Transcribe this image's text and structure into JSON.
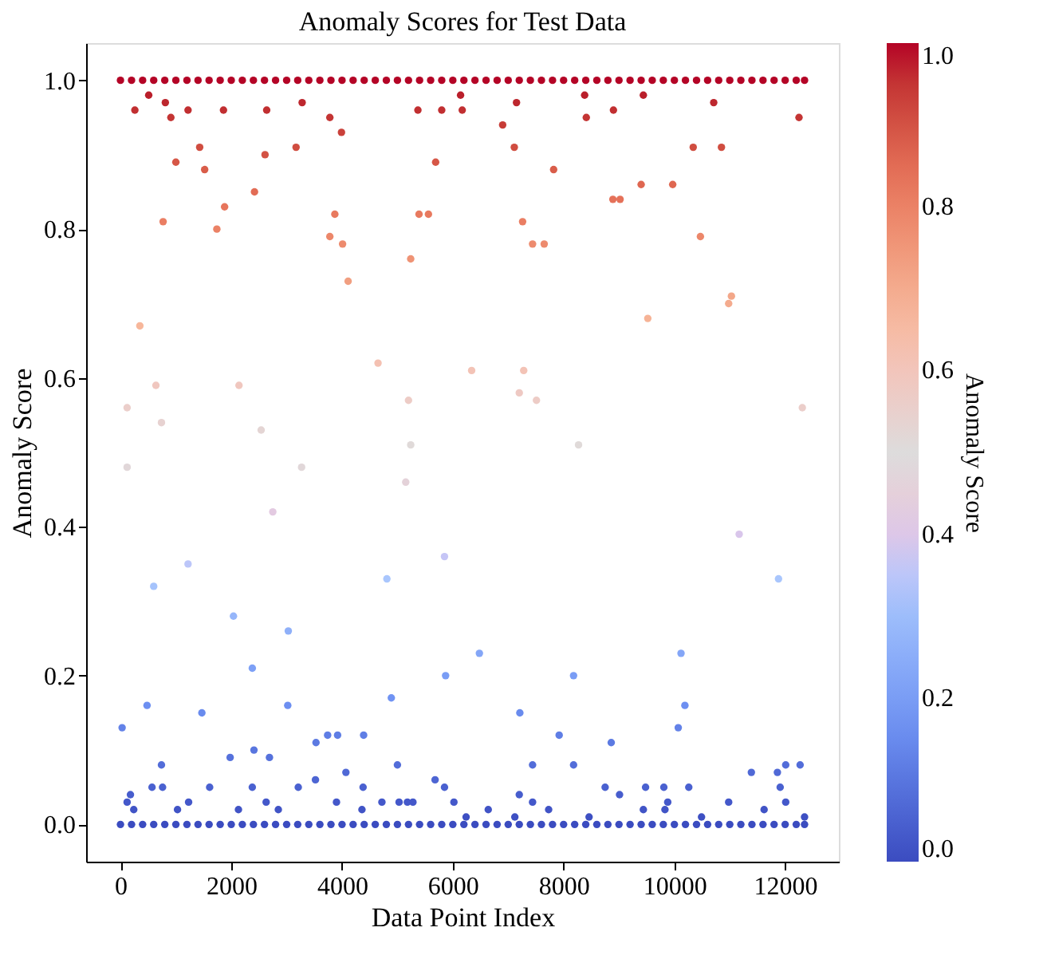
{
  "chart_data": {
    "type": "scatter",
    "title": "Anomaly Scores for Test Data",
    "xlabel": "Data Point Index",
    "ylabel": "Anomaly Score",
    "clabel": "Anomaly Score",
    "xlim": [
      -620,
      12970
    ],
    "ylim": [
      -0.05,
      1.05
    ],
    "xticks": [
      0,
      2000,
      4000,
      6000,
      8000,
      10000,
      12000
    ],
    "yticks": [
      {
        "value": 0,
        "label": "0.0"
      },
      {
        "value": 0.2,
        "label": "0.2"
      },
      {
        "value": 0.4,
        "label": "0.4"
      },
      {
        "value": 0.6,
        "label": "0.6"
      },
      {
        "value": 0.8,
        "label": "0.8"
      },
      {
        "value": 1,
        "label": "1.0"
      }
    ],
    "clim": [
      0,
      1
    ],
    "cticks": [
      {
        "value": 0,
        "label": "0.0"
      },
      {
        "value": 0.2,
        "label": "0.2"
      },
      {
        "value": 0.4,
        "label": "0.4"
      },
      {
        "value": 0.6,
        "label": "0.6"
      },
      {
        "value": 0.8,
        "label": "0.8"
      },
      {
        "value": 1,
        "label": "1.0"
      }
    ],
    "marker": "circle",
    "grid": false,
    "x": [
      0,
      200,
      400,
      600,
      800,
      1000,
      1200,
      1400,
      1600,
      1800,
      2000,
      2200,
      2400,
      2600,
      2800,
      3000,
      3200,
      3400,
      3600,
      3800,
      4000,
      4200,
      4400,
      4600,
      4800,
      5000,
      5200,
      5400,
      5600,
      5800,
      6000,
      6200,
      6400,
      6600,
      6800,
      7000,
      7200,
      7400,
      7600,
      7800,
      8000,
      8200,
      8400,
      8600,
      8800,
      9000,
      9200,
      9400,
      9600,
      9800,
      10000,
      10200,
      10400,
      10600,
      10800,
      11000,
      11200,
      11400,
      11600,
      11800,
      12000,
      12200,
      12350,
      0,
      200,
      400,
      600,
      800,
      1000,
      1200,
      1400,
      1600,
      1800,
      2000,
      2200,
      2400,
      2600,
      2800,
      3000,
      3200,
      3400,
      3600,
      3800,
      4000,
      4200,
      4400,
      4600,
      4800,
      5000,
      5200,
      5400,
      5600,
      5800,
      6000,
      6200,
      6400,
      6600,
      6800,
      7000,
      7200,
      7400,
      7600,
      7800,
      8000,
      8200,
      8400,
      8600,
      8800,
      9000,
      9200,
      9400,
      9600,
      9800,
      10000,
      10200,
      10400,
      10600,
      10800,
      11000,
      11200,
      11400,
      11600,
      11800,
      12000,
      12200,
      12350,
      260,
      510,
      810,
      910,
      1220,
      1000,
      1430,
      1520,
      770,
      1740,
      1880,
      2420,
      1860,
      2610,
      2640,
      3170,
      3280,
      3780,
      3990,
      3870,
      3780,
      4010,
      4110,
      5370,
      5800,
      6170,
      5690,
      5390,
      5560,
      5240,
      350,
      120,
      640,
      740,
      2140,
      2540,
      4650,
      5200,
      5240,
      3270,
      2750,
      5150,
      120,
      6140,
      7150,
      6900,
      7110,
      7820,
      8380,
      8410,
      8900,
      9440,
      10710,
      12250,
      10340,
      10850,
      7260,
      7440,
      7650,
      8890,
      9020,
      9400,
      9970,
      10470,
      9520,
      10980,
      11030,
      6340,
      7280,
      7200,
      7510,
      12310,
      8270,
      600,
      1220,
      2040,
      3030,
      4810,
      5850,
      2380,
      5870,
      480,
      1470,
      3020,
      4890,
      30,
      3530,
      3740,
      3920,
      4390,
      2410,
      2690,
      1980,
      740,
      5000,
      3520,
      4070,
      5680,
      570,
      760,
      1610,
      2380,
      3210,
      4380,
      5850,
      180,
      5030,
      5180,
      5280,
      3900,
      120,
      1230,
      2630,
      4720,
      6020,
      240,
      1030,
      2850,
      4360,
      2130,
      6480,
      11170,
      11880,
      10120,
      8180,
      7210,
      10190,
      10070,
      7920,
      8860,
      7440,
      8180,
      12270,
      12010,
      11860,
      11390,
      8750,
      9480,
      9810,
      10260,
      7200,
      9010,
      11910,
      7440,
      9880,
      9830,
      12010,
      10980,
      6640,
      7730,
      9440,
      11620,
      8460,
      12350,
      7120,
      10490,
      6240
    ],
    "values": [
      1,
      1,
      1,
      1,
      1,
      1,
      1,
      1,
      1,
      1,
      1,
      1,
      1,
      1,
      1,
      1,
      1,
      1,
      1,
      1,
      1,
      1,
      1,
      1,
      1,
      1,
      1,
      1,
      1,
      1,
      1,
      1,
      1,
      1,
      1,
      1,
      1,
      1,
      1,
      1,
      1,
      1,
      1,
      1,
      1,
      1,
      1,
      1,
      1,
      1,
      1,
      1,
      1,
      1,
      1,
      1,
      1,
      1,
      1,
      1,
      1,
      1,
      1,
      0,
      0,
      0,
      0,
      0,
      0,
      0,
      0,
      0,
      0,
      0,
      0,
      0,
      0,
      0,
      0,
      0,
      0,
      0,
      0,
      0,
      0,
      0,
      0,
      0,
      0,
      0,
      0,
      0,
      0,
      0,
      0,
      0,
      0,
      0,
      0,
      0,
      0,
      0,
      0,
      0,
      0,
      0,
      0,
      0,
      0,
      0,
      0,
      0,
      0,
      0,
      0,
      0,
      0,
      0,
      0,
      0,
      0,
      0,
      0,
      0,
      0,
      0,
      0.96,
      0.98,
      0.97,
      0.95,
      0.96,
      0.89,
      0.91,
      0.88,
      0.81,
      0.8,
      0.83,
      0.85,
      0.96,
      0.9,
      0.96,
      0.91,
      0.97,
      0.95,
      0.93,
      0.82,
      0.79,
      0.78,
      0.73,
      0.96,
      0.96,
      0.96,
      0.89,
      0.82,
      0.82,
      0.76,
      0.67,
      0.56,
      0.59,
      0.54,
      0.59,
      0.53,
      0.62,
      0.57,
      0.51,
      0.48,
      0.42,
      0.46,
      0.48,
      0.98,
      0.97,
      0.94,
      0.91,
      0.88,
      0.98,
      0.95,
      0.96,
      0.98,
      0.97,
      0.95,
      0.91,
      0.91,
      0.81,
      0.78,
      0.78,
      0.84,
      0.84,
      0.86,
      0.86,
      0.79,
      0.68,
      0.7,
      0.71,
      0.61,
      0.61,
      0.58,
      0.57,
      0.56,
      0.51,
      0.32,
      0.35,
      0.28,
      0.26,
      0.33,
      0.36,
      0.21,
      0.2,
      0.16,
      0.15,
      0.16,
      0.17,
      0.13,
      0.11,
      0.12,
      0.12,
      0.12,
      0.1,
      0.09,
      0.09,
      0.08,
      0.08,
      0.06,
      0.07,
      0.06,
      0.05,
      0.05,
      0.05,
      0.05,
      0.05,
      0.05,
      0.05,
      0.04,
      0.03,
      0.03,
      0.03,
      0.03,
      0.03,
      0.03,
      0.03,
      0.03,
      0.03,
      0.02,
      0.02,
      0.02,
      0.02,
      0.02,
      0.23,
      0.39,
      0.33,
      0.23,
      0.2,
      0.15,
      0.16,
      0.13,
      0.12,
      0.11,
      0.08,
      0.08,
      0.08,
      0.08,
      0.07,
      0.07,
      0.05,
      0.05,
      0.05,
      0.05,
      0.04,
      0.04,
      0.05,
      0.03,
      0.03,
      0.02,
      0.03,
      0.03,
      0.02,
      0.02,
      0.02,
      0.02,
      0.01,
      0.01,
      0.01,
      0.01,
      0.01
    ],
    "cvalues": [
      1,
      1,
      1,
      1,
      1,
      1,
      1,
      1,
      1,
      1,
      1,
      1,
      1,
      1,
      1,
      1,
      1,
      1,
      1,
      1,
      1,
      1,
      1,
      1,
      1,
      1,
      1,
      1,
      1,
      1,
      1,
      1,
      1,
      1,
      1,
      1,
      1,
      1,
      1,
      1,
      1,
      1,
      1,
      1,
      1,
      1,
      1,
      1,
      1,
      1,
      1,
      1,
      1,
      1,
      1,
      1,
      1,
      1,
      1,
      1,
      1,
      1,
      1,
      0,
      0,
      0,
      0,
      0,
      0,
      0,
      0,
      0,
      0,
      0,
      0,
      0,
      0,
      0,
      0,
      0,
      0,
      0,
      0,
      0,
      0,
      0,
      0,
      0,
      0,
      0,
      0,
      0,
      0,
      0,
      0,
      0,
      0,
      0,
      0,
      0,
      0,
      0,
      0,
      0,
      0,
      0,
      0,
      0,
      0,
      0,
      0,
      0,
      0,
      0,
      0,
      0,
      0,
      0,
      0,
      0,
      0,
      0,
      0,
      0,
      0,
      0,
      0.96,
      0.98,
      0.97,
      0.95,
      0.96,
      0.89,
      0.91,
      0.88,
      0.81,
      0.8,
      0.83,
      0.85,
      0.96,
      0.9,
      0.96,
      0.91,
      0.97,
      0.95,
      0.93,
      0.82,
      0.79,
      0.78,
      0.73,
      0.96,
      0.96,
      0.96,
      0.89,
      0.82,
      0.82,
      0.76,
      0.67,
      0.56,
      0.59,
      0.54,
      0.59,
      0.53,
      0.62,
      0.57,
      0.51,
      0.48,
      0.42,
      0.46,
      0.48,
      0.98,
      0.97,
      0.94,
      0.91,
      0.88,
      0.98,
      0.95,
      0.96,
      0.98,
      0.97,
      0.95,
      0.91,
      0.91,
      0.81,
      0.78,
      0.78,
      0.84,
      0.84,
      0.86,
      0.86,
      0.79,
      0.68,
      0.7,
      0.71,
      0.61,
      0.61,
      0.58,
      0.57,
      0.56,
      0.51,
      0.32,
      0.35,
      0.28,
      0.26,
      0.33,
      0.36,
      0.21,
      0.2,
      0.16,
      0.15,
      0.16,
      0.17,
      0.13,
      0.11,
      0.12,
      0.12,
      0.12,
      0.1,
      0.09,
      0.09,
      0.08,
      0.08,
      0.06,
      0.07,
      0.06,
      0.05,
      0.05,
      0.05,
      0.05,
      0.05,
      0.05,
      0.05,
      0.04,
      0.03,
      0.03,
      0.03,
      0.03,
      0.03,
      0.03,
      0.03,
      0.03,
      0.03,
      0.02,
      0.02,
      0.02,
      0.02,
      0.02,
      0.23,
      0.39,
      0.33,
      0.23,
      0.2,
      0.15,
      0.16,
      0.13,
      0.12,
      0.11,
      0.08,
      0.08,
      0.08,
      0.08,
      0.07,
      0.07,
      0.05,
      0.05,
      0.05,
      0.05,
      0.04,
      0.04,
      0.05,
      0.03,
      0.03,
      0.02,
      0.03,
      0.03,
      0.02,
      0.02,
      0.02,
      0.02,
      0.01,
      0.01,
      0.01,
      0.01,
      0.01
    ]
  }
}
